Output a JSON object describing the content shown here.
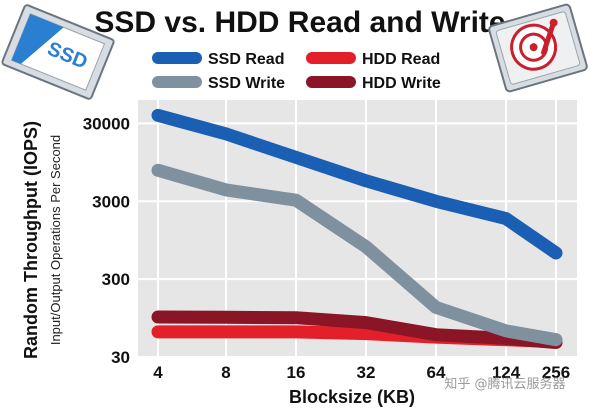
{
  "chart_data": {
    "type": "line",
    "title": "SSD vs. HDD Read and Write",
    "xlabel": "Blocksize (KB)",
    "ylabel": "Random Throughput (IOPS)",
    "ylabel_sub": "Input/Output Operations Per Second",
    "categories": [
      "4",
      "8",
      "16",
      "32",
      "64",
      "124",
      "256"
    ],
    "y_scale": "log",
    "ylim": [
      30,
      60000
    ],
    "y_ticks": [
      30,
      300,
      3000,
      30000
    ],
    "y_tick_labels": [
      "30",
      "300",
      "3000",
      "30000"
    ],
    "grid": true,
    "legend_position": "top-center",
    "series": [
      {
        "name": "SSD Read",
        "color": "#1a5fb4",
        "values": [
          38000,
          22000,
          11000,
          5500,
          3000,
          1800,
          650
        ]
      },
      {
        "name": "SSD Write",
        "color": "#7f909f",
        "values": [
          7500,
          4200,
          3100,
          780,
          130,
          65,
          50
        ]
      },
      {
        "name": "HDD Read",
        "color": "#e3202a",
        "values": [
          63,
          63,
          63,
          60,
          54,
          50,
          47
        ]
      },
      {
        "name": "HDD Write",
        "color": "#8a1526",
        "values": [
          98,
          97,
          96,
          83,
          58,
          52,
          46
        ]
      }
    ]
  },
  "icons": {
    "ssd_drive": {
      "name": "ssd-drive-icon",
      "label": "SSD",
      "color": "#2a7fd0"
    },
    "hdd_drive": {
      "name": "hdd-drive-icon",
      "color": "#c8202c"
    }
  },
  "watermark": "知乎 @腾讯云服务器"
}
